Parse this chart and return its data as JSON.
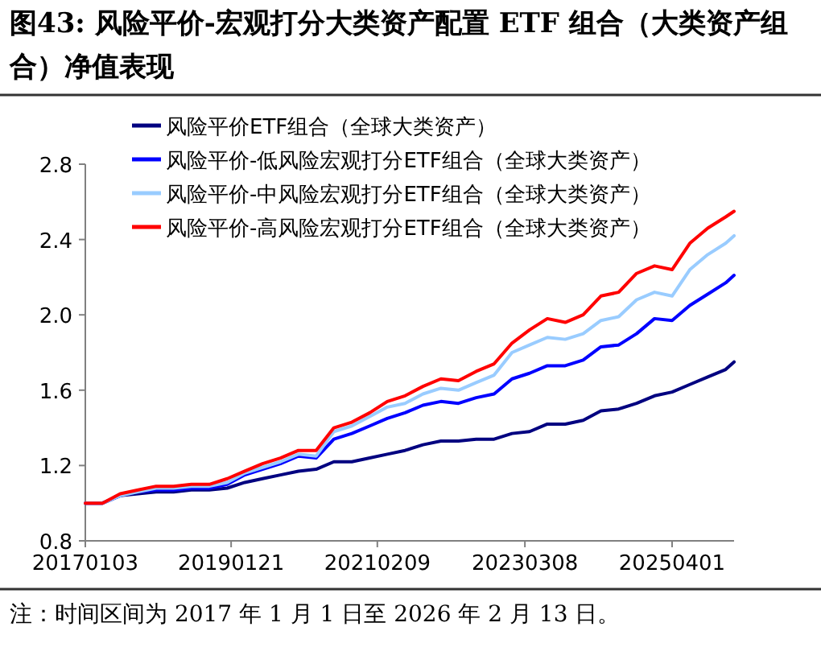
{
  "chart_data": {
    "type": "line",
    "title": "图43:  风险平价-宏观打分大类资产配置 ETF 组合（大类资产组合）净值表现",
    "annotations": [
      "注：时间区间为 2017 年 1 月 1 日至 2026 年 2 月 13 日。"
    ],
    "x": [
      "2017-01-03",
      "2017-04-01",
      "2017-07-01",
      "2017-10-01",
      "2018-01-01",
      "2018-04-01",
      "2018-07-01",
      "2018-10-01",
      "2019-01-01",
      "2019-04-01",
      "2019-07-01",
      "2019-10-01",
      "2020-01-01",
      "2020-04-01",
      "2020-07-01",
      "2020-10-01",
      "2021-01-01",
      "2021-04-01",
      "2021-07-01",
      "2021-10-01",
      "2022-01-01",
      "2022-04-01",
      "2022-07-01",
      "2022-10-01",
      "2023-01-01",
      "2023-04-01",
      "2023-07-01",
      "2023-10-01",
      "2024-01-01",
      "2024-04-01",
      "2024-07-01",
      "2024-10-01",
      "2025-01-01",
      "2025-04-01",
      "2025-07-01",
      "2025-10-01",
      "2026-01-01",
      "2026-02-13"
    ],
    "series": [
      {
        "name": "风险平价ETF组合（全球大类资产）",
        "color": "#000080",
        "values": [
          1.0,
          1.0,
          1.04,
          1.05,
          1.06,
          1.06,
          1.07,
          1.07,
          1.08,
          1.11,
          1.13,
          1.15,
          1.17,
          1.18,
          1.22,
          1.22,
          1.24,
          1.26,
          1.28,
          1.31,
          1.33,
          1.33,
          1.34,
          1.34,
          1.37,
          1.38,
          1.42,
          1.42,
          1.44,
          1.49,
          1.5,
          1.53,
          1.57,
          1.59,
          1.63,
          1.67,
          1.71,
          1.75
        ]
      },
      {
        "name": "风险平价-低风险宏观打分ETF组合（全球大类资产）",
        "color": "#0000ff",
        "values": [
          1.0,
          1.0,
          1.04,
          1.06,
          1.07,
          1.07,
          1.08,
          1.08,
          1.1,
          1.15,
          1.18,
          1.21,
          1.25,
          1.24,
          1.34,
          1.37,
          1.41,
          1.45,
          1.48,
          1.52,
          1.54,
          1.53,
          1.56,
          1.58,
          1.66,
          1.69,
          1.73,
          1.73,
          1.76,
          1.83,
          1.84,
          1.9,
          1.98,
          1.97,
          2.05,
          2.11,
          2.17,
          2.21
        ]
      },
      {
        "name": "风险平价-中风险宏观打分ETF组合（全球大类资产）",
        "color": "#99ccff",
        "values": [
          1.0,
          1.0,
          1.04,
          1.06,
          1.08,
          1.08,
          1.09,
          1.09,
          1.11,
          1.16,
          1.19,
          1.22,
          1.26,
          1.25,
          1.38,
          1.41,
          1.46,
          1.51,
          1.53,
          1.58,
          1.61,
          1.6,
          1.64,
          1.68,
          1.8,
          1.84,
          1.88,
          1.87,
          1.9,
          1.97,
          1.99,
          2.08,
          2.12,
          2.1,
          2.24,
          2.32,
          2.38,
          2.42
        ]
      },
      {
        "name": "风险平价-高风险宏观打分ETF组合（全球大类资产）",
        "color": "#ff0000",
        "values": [
          1.0,
          1.0,
          1.05,
          1.07,
          1.09,
          1.09,
          1.1,
          1.1,
          1.13,
          1.17,
          1.21,
          1.24,
          1.28,
          1.28,
          1.4,
          1.43,
          1.48,
          1.54,
          1.57,
          1.62,
          1.66,
          1.65,
          1.7,
          1.74,
          1.85,
          1.92,
          1.98,
          1.96,
          2.0,
          2.1,
          2.12,
          2.22,
          2.26,
          2.24,
          2.38,
          2.46,
          2.52,
          2.55
        ]
      }
    ],
    "xlim": [
      "2017-01-03",
      "2026-02-13"
    ],
    "xticks": [
      {
        "value": "2017-01-03",
        "label": "20170103"
      },
      {
        "value": "2019-01-21",
        "label": "20190121"
      },
      {
        "value": "2021-02-09",
        "label": "20210209"
      },
      {
        "value": "2023-03-08",
        "label": "20230308"
      },
      {
        "value": "2025-04-01",
        "label": "20250401"
      }
    ],
    "ylim": [
      0.8,
      2.8
    ],
    "yticks": [
      0.8,
      1.2,
      1.6,
      {
        "value": 2,
        "label": "2.0"
      },
      2.4,
      2.8
    ],
    "legend": "top left",
    "grid": false,
    "marker": "none",
    "line_style": "solid"
  }
}
